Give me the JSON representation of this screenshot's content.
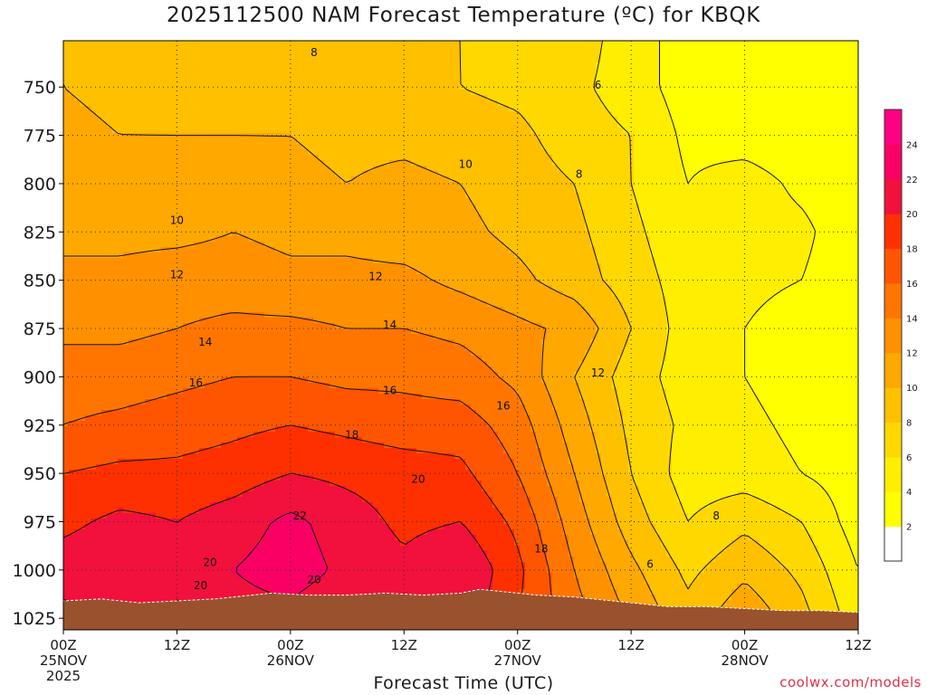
{
  "title": "2025112500 NAM Forecast Temperature (ºC) for KBQK",
  "source": "coolwx.com/models",
  "chart_data": {
    "type": "heatmap",
    "title": "2025112500 NAM Forecast Temperature (ºC) for KBQK",
    "xlabel": "Forecast Time (UTC)",
    "ylabel": "",
    "x_ticks": [
      {
        "hour": 0,
        "lines": [
          "00Z",
          "25NOV",
          "2025"
        ]
      },
      {
        "hour": 12,
        "lines": [
          "12Z"
        ]
      },
      {
        "hour": 24,
        "lines": [
          "00Z",
          "26NOV"
        ]
      },
      {
        "hour": 36,
        "lines": [
          "12Z"
        ]
      },
      {
        "hour": 48,
        "lines": [
          "00Z",
          "27NOV"
        ]
      },
      {
        "hour": 60,
        "lines": [
          "12Z"
        ]
      },
      {
        "hour": 72,
        "lines": [
          "00Z",
          "28NOV"
        ]
      },
      {
        "hour": 84,
        "lines": [
          "12Z"
        ]
      }
    ],
    "xlim": [
      0,
      84
    ],
    "y_ticks": [
      750,
      775,
      800,
      825,
      850,
      875,
      900,
      925,
      950,
      975,
      1000,
      1025
    ],
    "ylim_hpa": [
      726,
      1031
    ],
    "grid": true,
    "colorbar": {
      "levels": [
        2,
        4,
        6,
        8,
        10,
        12,
        14,
        16,
        18,
        20,
        22,
        24
      ],
      "bins": [
        {
          "from": 0,
          "to": 2,
          "color": "#ffffff"
        },
        {
          "from": 2,
          "to": 4,
          "color": "#ffff00"
        },
        {
          "from": 4,
          "to": 6,
          "color": "#ffee00"
        },
        {
          "from": 6,
          "to": 8,
          "color": "#ffd800"
        },
        {
          "from": 8,
          "to": 10,
          "color": "#ffc000"
        },
        {
          "from": 10,
          "to": 12,
          "color": "#ffa800"
        },
        {
          "from": 12,
          "to": 14,
          "color": "#ff9000"
        },
        {
          "from": 14,
          "to": 16,
          "color": "#ff7500"
        },
        {
          "from": 16,
          "to": 18,
          "color": "#ff5500"
        },
        {
          "from": 18,
          "to": 20,
          "color": "#ff3000"
        },
        {
          "from": 20,
          "to": 22,
          "color": "#f2103c"
        },
        {
          "from": 22,
          "to": 24,
          "color": "#fa0064"
        },
        {
          "from": 24,
          "to": 26,
          "color": "#ff0082"
        }
      ]
    },
    "terrain_color": "#99522d",
    "terrain_surface_hpa": [
      [
        0,
        1016
      ],
      [
        4,
        1015
      ],
      [
        8,
        1017
      ],
      [
        12,
        1016
      ],
      [
        16,
        1015
      ],
      [
        18,
        1014
      ],
      [
        22,
        1012
      ],
      [
        26,
        1013
      ],
      [
        30,
        1013
      ],
      [
        34,
        1012
      ],
      [
        38,
        1013
      ],
      [
        42,
        1012
      ],
      [
        44,
        1010
      ],
      [
        46,
        1011
      ],
      [
        48,
        1012
      ],
      [
        50,
        1013
      ],
      [
        54,
        1014
      ],
      [
        58,
        1016
      ],
      [
        60,
        1017
      ],
      [
        62,
        1018
      ],
      [
        64,
        1019
      ],
      [
        68,
        1019
      ],
      [
        72,
        1020
      ],
      [
        76,
        1021
      ],
      [
        80,
        1021
      ],
      [
        84,
        1022
      ]
    ],
    "temperature_grid": {
      "hours": [
        0,
        6,
        12,
        18,
        24,
        30,
        36,
        42,
        48,
        54,
        60,
        66,
        72,
        78,
        84
      ],
      "pressure": [
        725,
        750,
        775,
        800,
        825,
        850,
        875,
        900,
        925,
        950,
        975,
        1000,
        1030
      ],
      "values": [
        [
          10,
          9,
          8.5,
          8,
          8.5,
          8,
          8,
          8,
          7.5,
          7,
          5,
          3,
          2.5,
          2.5,
          2.5
        ],
        [
          10,
          9.5,
          9,
          9,
          9,
          9,
          8.5,
          8,
          7.5,
          6.5,
          5,
          3,
          2.5,
          2.5,
          2.5
        ],
        [
          10.5,
          10,
          10,
          10,
          10,
          9.5,
          9.5,
          9,
          8.5,
          7,
          6,
          3.5,
          3,
          2.5,
          2.5
        ],
        [
          11,
          11,
          11,
          11,
          10.5,
          10,
          10.5,
          10,
          9,
          8,
          6,
          4,
          5,
          3.5,
          2.5
        ],
        [
          11.5,
          11.5,
          11.5,
          12,
          11.5,
          11.5,
          11,
          10.5,
          9.5,
          8.5,
          6.5,
          4.5,
          5,
          4.5,
          2.5
        ],
        [
          12.5,
          12.5,
          13,
          13,
          12.5,
          12.5,
          12.5,
          11.5,
          10.5,
          9,
          7,
          5,
          4.5,
          4,
          2.5
        ],
        [
          13.5,
          13.5,
          14,
          14.5,
          14.5,
          14,
          14,
          13.5,
          12.5,
          11.5,
          8,
          5,
          4,
          3,
          2.5
        ],
        [
          15,
          15,
          15.5,
          16,
          16,
          15.5,
          15.5,
          15,
          13.5,
          10,
          7,
          5,
          4,
          3,
          2.5
        ],
        [
          16,
          16.5,
          17,
          17.5,
          18,
          17.5,
          17,
          17,
          15,
          11,
          7.5,
          5.5,
          4.5,
          3.5,
          2.5
        ],
        [
          18,
          18.5,
          18.5,
          19,
          20,
          19.5,
          19,
          18.5,
          16,
          12,
          8,
          5,
          5,
          4,
          3
        ],
        [
          19.5,
          20.5,
          20,
          21,
          22.5,
          21,
          19.5,
          20,
          17.5,
          13,
          9,
          6,
          7.5,
          6,
          3
        ],
        [
          21,
          21.5,
          20.5,
          22,
          23,
          21.5,
          20.5,
          22,
          18.5,
          14,
          10.5,
          7.5,
          9.5,
          7.5,
          4
        ],
        [
          19,
          20,
          19.5,
          21,
          21,
          20,
          20,
          21,
          18,
          15,
          12,
          9,
          12,
          9,
          5
        ]
      ]
    },
    "contour_labels": [
      {
        "text": "6",
        "hour": 56.5,
        "hpa": 749
      },
      {
        "text": "8",
        "hour": 26.5,
        "hpa": 732
      },
      {
        "text": "8",
        "hour": 54.5,
        "hpa": 795
      },
      {
        "text": "10",
        "hour": 12,
        "hpa": 819
      },
      {
        "text": "10",
        "hour": 42.5,
        "hpa": 790
      },
      {
        "text": "12",
        "hour": 12,
        "hpa": 847
      },
      {
        "text": "12",
        "hour": 33,
        "hpa": 848
      },
      {
        "text": "12",
        "hour": 56.5,
        "hpa": 898
      },
      {
        "text": "14",
        "hour": 15,
        "hpa": 882
      },
      {
        "text": "14",
        "hour": 34.5,
        "hpa": 873
      },
      {
        "text": "16",
        "hour": 14,
        "hpa": 903
      },
      {
        "text": "16",
        "hour": 34.5,
        "hpa": 907
      },
      {
        "text": "16",
        "hour": 46.5,
        "hpa": 915
      },
      {
        "text": "18",
        "hour": 30.5,
        "hpa": 930
      },
      {
        "text": "18",
        "hour": 50.5,
        "hpa": 989
      },
      {
        "text": "20",
        "hour": 37.5,
        "hpa": 953
      },
      {
        "text": "20",
        "hour": 15.5,
        "hpa": 996
      },
      {
        "text": "20",
        "hour": 14.5,
        "hpa": 1008
      },
      {
        "text": "20",
        "hour": 26.5,
        "hpa": 1005
      },
      {
        "text": "22",
        "hour": 25,
        "hpa": 972
      },
      {
        "text": "8",
        "hour": 69,
        "hpa": 972
      },
      {
        "text": "6",
        "hour": 62,
        "hpa": 997
      }
    ]
  }
}
